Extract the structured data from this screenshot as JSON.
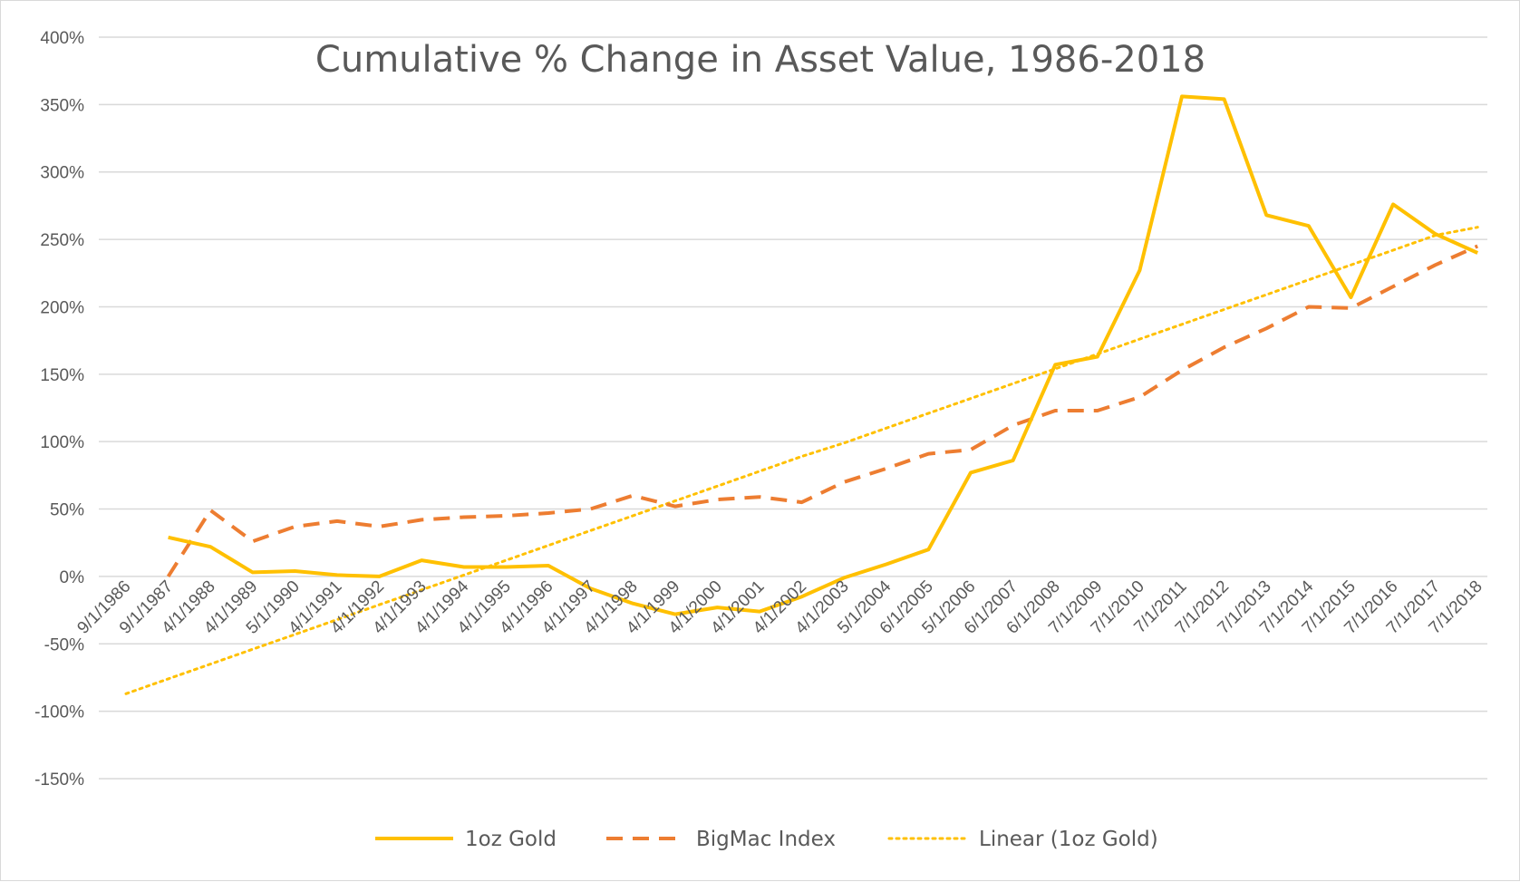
{
  "chart_data": {
    "type": "line",
    "title": "Cumulative % Change in Asset Value, 1986-2018",
    "xlabel": "",
    "ylabel": "",
    "ylim": [
      -150,
      400
    ],
    "y_ticks": [
      400,
      350,
      300,
      250,
      200,
      150,
      100,
      50,
      0,
      -50,
      -100,
      -150
    ],
    "y_tick_labels": [
      "400%",
      "350%",
      "300%",
      "250%",
      "200%",
      "150%",
      "100%",
      "50%",
      "0%",
      "-50%",
      "-100%",
      "-150%"
    ],
    "categories": [
      "9/1/1986",
      "9/1/1987",
      "4/1/1988",
      "4/1/1989",
      "5/1/1990",
      "4/1/1991",
      "4/1/1992",
      "4/1/1993",
      "4/1/1994",
      "4/1/1995",
      "4/1/1996",
      "4/1/1997",
      "4/1/1998",
      "4/1/1999",
      "4/1/2000",
      "4/1/2001",
      "4/1/2002",
      "4/1/2003",
      "5/1/2004",
      "6/1/2005",
      "5/1/2006",
      "6/1/2007",
      "6/1/2008",
      "7/1/2009",
      "7/1/2010",
      "7/1/2011",
      "7/1/2012",
      "7/1/2013",
      "7/1/2014",
      "7/1/2015",
      "7/1/2016",
      "7/1/2017",
      "7/1/2018"
    ],
    "grid": true,
    "legend_position": "bottom",
    "series": [
      {
        "name": "1oz Gold",
        "style": "solid",
        "color": "#FFC000",
        "values": [
          null,
          29,
          22,
          3,
          4,
          1,
          0,
          12,
          7,
          7,
          8,
          -9,
          -20,
          -28,
          -23,
          -26,
          -15,
          -1,
          9,
          20,
          77,
          86,
          157,
          163,
          227,
          356,
          354,
          268,
          260,
          207,
          276,
          254,
          240
        ]
      },
      {
        "name": "BigMac Index",
        "style": "dashed",
        "color": "#ED7D31",
        "values": [
          null,
          0,
          49,
          26,
          37,
          41,
          37,
          42,
          44,
          45,
          47,
          50,
          60,
          52,
          57,
          59,
          55,
          70,
          80,
          91,
          94,
          112,
          123,
          123,
          133,
          153,
          170,
          184,
          200,
          199,
          215,
          231,
          245
        ]
      },
      {
        "name": "Linear (1oz Gold)",
        "style": "dotted",
        "color": "#FFC000",
        "trendline": true,
        "values": [
          -87,
          -76,
          -65,
          -54,
          -43,
          -32,
          -21,
          -10,
          1,
          12,
          23,
          34,
          45,
          56,
          67,
          78,
          89,
          99,
          110,
          121,
          132,
          143,
          154,
          165,
          176,
          187,
          198,
          209,
          220,
          231,
          242,
          253,
          259
        ]
      }
    ]
  }
}
